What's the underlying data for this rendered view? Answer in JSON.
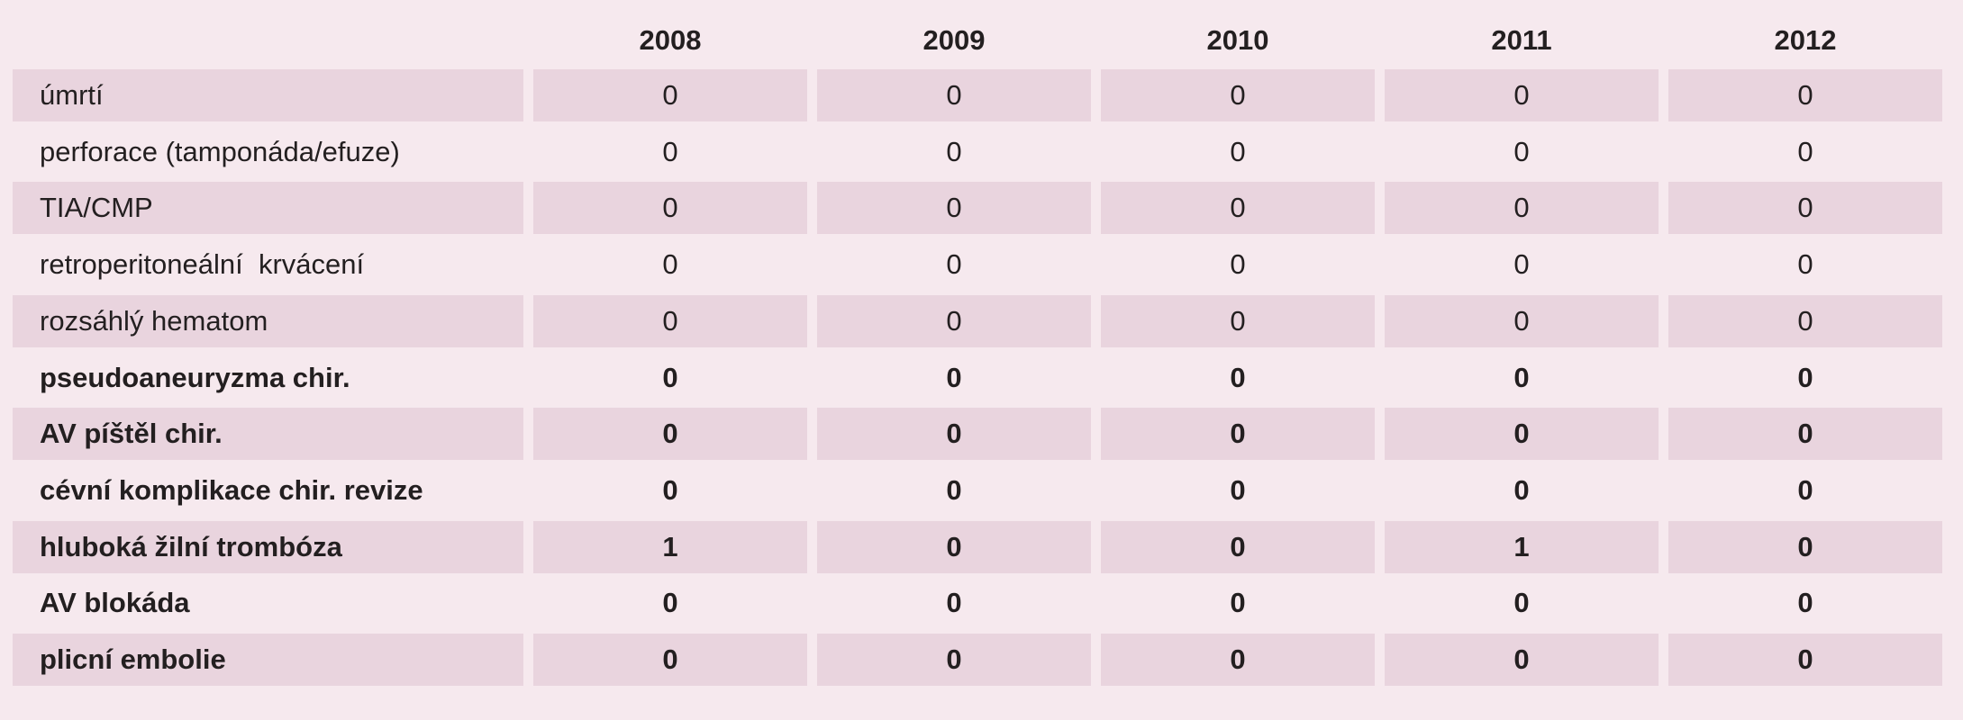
{
  "table": {
    "columns": [
      "2008",
      "2009",
      "2010",
      "2011",
      "2012"
    ],
    "rows": [
      {
        "label": "úmrtí",
        "values": [
          0,
          0,
          0,
          0,
          0
        ]
      },
      {
        "label": "perforace (tamponáda/efuze)",
        "values": [
          0,
          0,
          0,
          0,
          0
        ]
      },
      {
        "label": "TIA/CMP",
        "values": [
          0,
          0,
          0,
          0,
          0
        ]
      },
      {
        "label": "retroperitoneální  krvácení",
        "values": [
          0,
          0,
          0,
          0,
          0
        ]
      },
      {
        "label": "rozsáhlý hematom",
        "values": [
          0,
          0,
          0,
          0,
          0
        ]
      },
      {
        "label": "pseudoaneuryzma chir.",
        "values": [
          0,
          0,
          0,
          0,
          0
        ]
      },
      {
        "label": "AV píštěl chir.",
        "values": [
          0,
          0,
          0,
          0,
          0
        ]
      },
      {
        "label": "cévní komplikace chir. revize",
        "values": [
          0,
          0,
          0,
          0,
          0
        ]
      },
      {
        "label": "hluboká žilní trombóza",
        "values": [
          1,
          0,
          0,
          1,
          0
        ]
      },
      {
        "label": "AV blokáda",
        "values": [
          0,
          0,
          0,
          0,
          0
        ]
      },
      {
        "label": "plicní embolie",
        "values": [
          0,
          0,
          0,
          0,
          0
        ]
      }
    ]
  }
}
